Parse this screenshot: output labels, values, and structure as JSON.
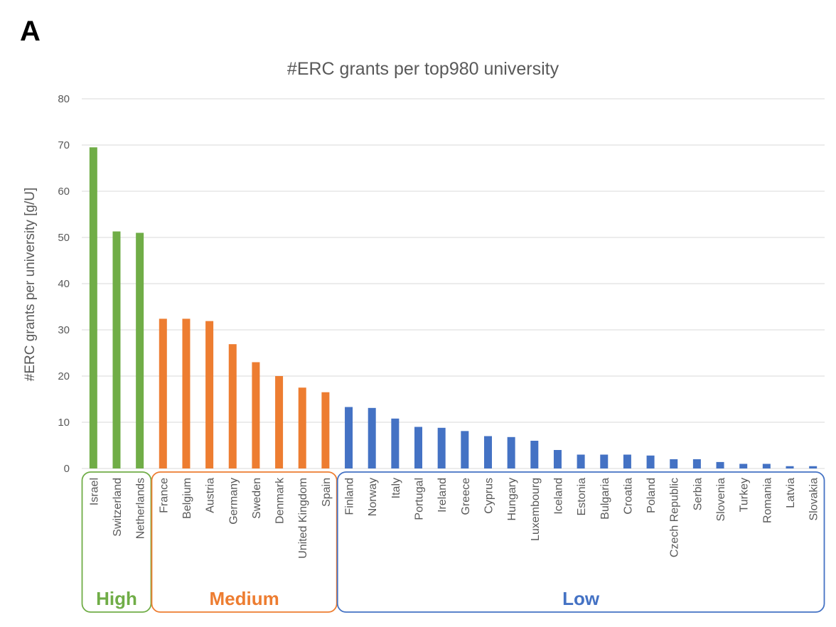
{
  "panel_letter": "A",
  "colors": {
    "High": "#70ad47",
    "Medium": "#ed7d31",
    "Low": "#4472c4",
    "grid": "#d9d9d9",
    "text": "#595959"
  },
  "chart_data": {
    "type": "bar",
    "title": "#ERC grants per top980 university",
    "xlabel": "",
    "ylabel": "#ERC grants per university [g/U]",
    "ylim": [
      0,
      80
    ],
    "yticks": [
      0,
      10,
      20,
      30,
      40,
      50,
      60,
      70,
      80
    ],
    "grid": true,
    "categories": [
      "Israel",
      "Switzerland",
      "Netherlands",
      "France",
      "Belgium",
      "Austria",
      "Germany",
      "Sweden",
      "Denmark",
      "United Kingdom",
      "Spain",
      "Finland",
      "Norway",
      "Italy",
      "Portugal",
      "Ireland",
      "Greece",
      "Cyprus",
      "Hungary",
      "Luxembourg",
      "Iceland",
      "Estonia",
      "Bulgaria",
      "Croatia",
      "Poland",
      "Czech Republic",
      "Serbia",
      "Slovenia",
      "Turkey",
      "Romania",
      "Latvia",
      "Slovakia"
    ],
    "values": [
      69.5,
      51.3,
      51.0,
      32.4,
      32.4,
      31.9,
      26.9,
      23.0,
      20.0,
      17.5,
      16.5,
      13.3,
      13.1,
      10.8,
      9.0,
      8.8,
      8.1,
      7.0,
      6.8,
      6.0,
      4.0,
      3.0,
      3.0,
      3.0,
      2.8,
      2.0,
      2.0,
      1.4,
      1.0,
      1.0,
      0.5,
      0.5
    ],
    "groups": [
      {
        "name": "High",
        "start": 0,
        "end": 2
      },
      {
        "name": "Medium",
        "start": 3,
        "end": 10
      },
      {
        "name": "Low",
        "start": 11,
        "end": 31
      }
    ]
  }
}
